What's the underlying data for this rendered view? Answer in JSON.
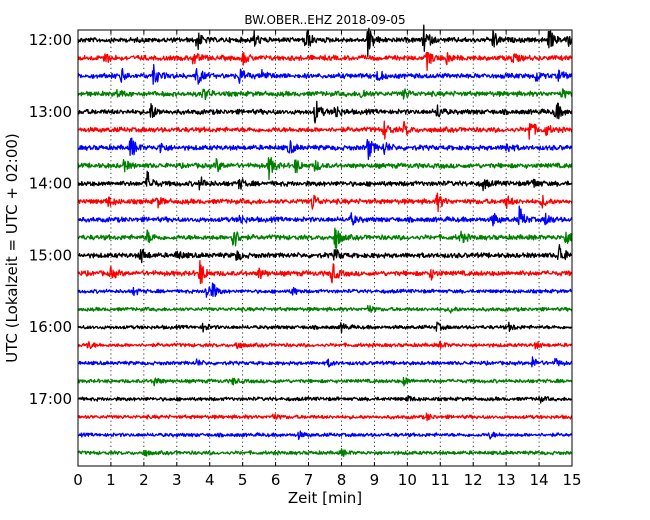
{
  "chart_data": {
    "type": "line",
    "title": "BW.OBER..EHZ 2018-09-05",
    "xlabel": "Zeit  [min]",
    "ylabel": "UTC (Lokalzeit = UTC + 02:00)",
    "xlim": [
      0,
      15
    ],
    "x_ticks": [
      0,
      1,
      2,
      3,
      4,
      5,
      6,
      7,
      8,
      9,
      10,
      11,
      12,
      13,
      14,
      15
    ],
    "y_ticks": [
      "12:00",
      "13:00",
      "14:00",
      "15:00",
      "16:00",
      "17:00"
    ],
    "grid": "vertical-dotted",
    "trace_interval_minutes": 15,
    "series_colors": [
      "#000000",
      "#ff0000",
      "#0000ff",
      "#008000"
    ],
    "series": [
      {
        "start": "12:00",
        "color": "#000000",
        "events": [
          [
            3.6,
            1.0
          ],
          [
            5.3,
            1.0
          ],
          [
            6.9,
            1.3
          ],
          [
            8.8,
            1.4
          ],
          [
            10.5,
            1.3
          ],
          [
            12.6,
            0.9
          ],
          [
            14.3,
            1.0
          ],
          [
            14.8,
            0.9
          ]
        ]
      },
      {
        "start": "12:15",
        "color": "#ff0000",
        "events": [
          [
            0.8,
            0.6
          ],
          [
            3.5,
            0.7
          ],
          [
            5.0,
            0.6
          ],
          [
            10.6,
            0.9
          ],
          [
            11.2,
            0.6
          ],
          [
            13.2,
            0.5
          ]
        ]
      },
      {
        "start": "12:30",
        "color": "#0000ff",
        "events": [
          [
            1.3,
            0.7
          ],
          [
            2.3,
            0.9
          ],
          [
            3.6,
            1.0
          ],
          [
            4.9,
            0.8
          ],
          [
            5.6,
            0.6
          ],
          [
            9.1,
            0.6
          ],
          [
            13.9,
            0.5
          ],
          [
            14.6,
            0.5
          ]
        ]
      },
      {
        "start": "12:45",
        "color": "#008000",
        "events": [
          [
            1.2,
            0.4
          ],
          [
            3.8,
            0.6
          ],
          [
            8.6,
            0.5
          ],
          [
            9.9,
            0.5
          ],
          [
            14.7,
            0.4
          ]
        ]
      },
      {
        "start": "13:00",
        "color": "#000000",
        "events": [
          [
            2.2,
            0.9
          ],
          [
            7.2,
            1.2
          ],
          [
            7.8,
            0.8
          ],
          [
            10.9,
            0.7
          ],
          [
            14.5,
            1.1
          ]
        ]
      },
      {
        "start": "13:15",
        "color": "#ff0000",
        "events": [
          [
            9.3,
            0.8
          ],
          [
            9.9,
            0.6
          ],
          [
            13.7,
            1.1
          ],
          [
            14.2,
            0.5
          ]
        ]
      },
      {
        "start": "13:30",
        "color": "#0000ff",
        "events": [
          [
            1.6,
            1.1
          ],
          [
            2.5,
            0.5
          ],
          [
            6.4,
            0.7
          ],
          [
            8.8,
            1.1
          ],
          [
            9.3,
            0.6
          ],
          [
            13.0,
            0.5
          ]
        ]
      },
      {
        "start": "13:45",
        "color": "#008000",
        "events": [
          [
            1.4,
            0.5
          ],
          [
            4.2,
            0.6
          ],
          [
            5.8,
            1.1
          ],
          [
            6.6,
            0.7
          ],
          [
            7.2,
            0.5
          ]
        ]
      },
      {
        "start": "14:00",
        "color": "#000000",
        "events": [
          [
            2.1,
            1.1
          ],
          [
            3.7,
            0.6
          ],
          [
            4.9,
            0.5
          ],
          [
            12.3,
            0.5
          ],
          [
            13.8,
            0.5
          ]
        ]
      },
      {
        "start": "14:15",
        "color": "#ff0000",
        "events": [
          [
            0.9,
            0.5
          ],
          [
            2.4,
            0.5
          ],
          [
            7.1,
            0.9
          ],
          [
            10.9,
            0.9
          ],
          [
            13.0,
            0.6
          ],
          [
            14.1,
            0.5
          ]
        ]
      },
      {
        "start": "14:30",
        "color": "#0000ff",
        "events": [
          [
            4.9,
            0.5
          ],
          [
            8.3,
            0.5
          ],
          [
            12.6,
            0.6
          ],
          [
            13.4,
            1.1
          ],
          [
            14.2,
            0.6
          ]
        ]
      },
      {
        "start": "14:45",
        "color": "#008000",
        "events": [
          [
            2.1,
            0.6
          ],
          [
            4.7,
            1.3
          ],
          [
            7.8,
            1.3
          ],
          [
            11.6,
            0.6
          ],
          [
            14.8,
            0.7
          ]
        ]
      },
      {
        "start": "15:00",
        "color": "#000000",
        "events": [
          [
            1.9,
            0.8
          ],
          [
            3.0,
            0.5
          ],
          [
            4.8,
            0.5
          ],
          [
            7.8,
            0.6
          ],
          [
            14.6,
            1.2
          ]
        ]
      },
      {
        "start": "15:15",
        "color": "#ff0000",
        "events": [
          [
            1.0,
            0.5
          ],
          [
            3.7,
            1.3
          ],
          [
            5.5,
            0.5
          ],
          [
            7.7,
            1.1
          ],
          [
            10.7,
            0.5
          ]
        ]
      },
      {
        "start": "15:30",
        "color": "#0000ff",
        "events": [
          [
            1.7,
            0.4
          ],
          [
            3.9,
            0.9
          ],
          [
            4.1,
            0.6
          ],
          [
            6.5,
            0.4
          ]
        ]
      },
      {
        "start": "15:45",
        "color": "#008000",
        "events": [
          [
            8.8,
            0.4
          ],
          [
            11.3,
            0.3
          ]
        ]
      },
      {
        "start": "16:00",
        "color": "#000000",
        "events": [
          [
            3.8,
            0.4
          ],
          [
            8.0,
            0.4
          ],
          [
            10.9,
            0.4
          ],
          [
            13.1,
            0.4
          ]
        ]
      },
      {
        "start": "16:15",
        "color": "#ff0000",
        "events": [
          [
            0.3,
            0.4
          ],
          [
            4.8,
            0.4
          ],
          [
            11.0,
            0.3
          ],
          [
            13.9,
            0.3
          ]
        ]
      },
      {
        "start": "16:30",
        "color": "#0000ff",
        "events": [
          [
            3.6,
            0.3
          ],
          [
            7.6,
            0.3
          ],
          [
            13.8,
            0.5
          ],
          [
            14.5,
            0.4
          ]
        ]
      },
      {
        "start": "16:45",
        "color": "#008000",
        "events": [
          [
            2.3,
            0.5
          ],
          [
            4.7,
            0.3
          ],
          [
            9.9,
            0.4
          ]
        ]
      },
      {
        "start": "17:00",
        "color": "#000000",
        "events": [
          [
            10.0,
            0.3
          ],
          [
            14.0,
            0.3
          ]
        ]
      },
      {
        "start": "17:15",
        "color": "#ff0000",
        "events": [
          [
            5.9,
            0.3
          ],
          [
            10.6,
            0.3
          ]
        ]
      },
      {
        "start": "17:30",
        "color": "#0000ff",
        "events": [
          [
            6.7,
            0.3
          ],
          [
            12.5,
            0.3
          ]
        ]
      },
      {
        "start": "17:45",
        "color": "#008000",
        "events": [
          [
            2.0,
            0.3
          ],
          [
            8.0,
            0.3
          ]
        ]
      }
    ]
  }
}
